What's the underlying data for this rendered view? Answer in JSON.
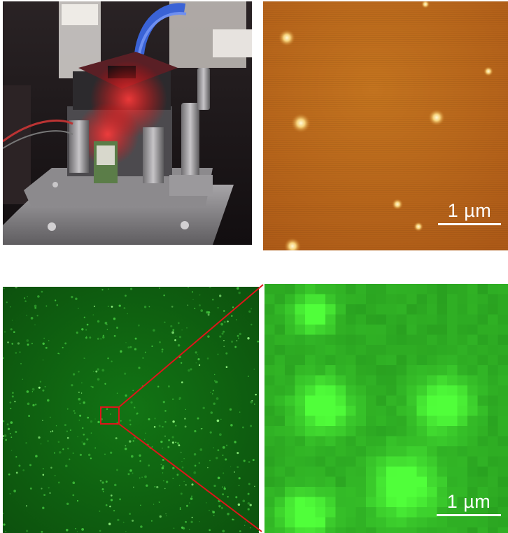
{
  "figure": {
    "panels": [
      {
        "id": "instrument-photo",
        "description_icon": "camera-icon"
      },
      {
        "id": "afm-topography"
      },
      {
        "id": "fluorescence-overview"
      },
      {
        "id": "fluorescence-zoom"
      }
    ],
    "afm_scalebar": {
      "label": "1 µm"
    },
    "zoom_scalebar": {
      "label": "1 µm"
    },
    "colors": {
      "afm_base": "#b9661b",
      "fluor_dark": "#0f5a10",
      "fluor_zoom": "#2f8c2d",
      "zoom_box": "#e0141a",
      "scalebar": "#ffffff"
    }
  }
}
